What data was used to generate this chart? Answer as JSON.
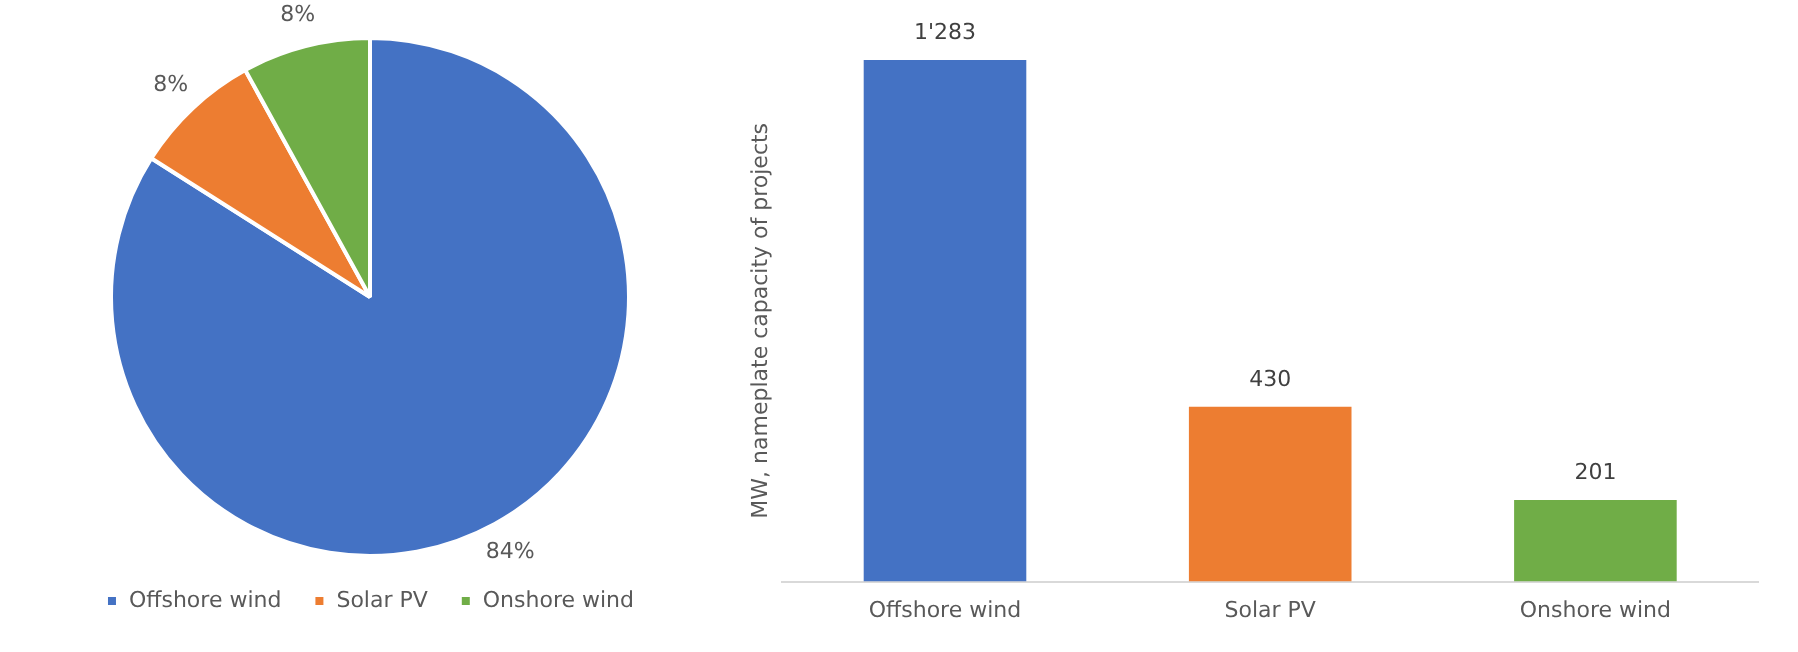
{
  "chart_data": [
    {
      "type": "pie",
      "categories": [
        "Offshore wind",
        "Solar PV",
        "Onshore wind"
      ],
      "values": [
        84,
        8,
        8
      ],
      "colors": [
        "#4472c4",
        "#ed7d31",
        "#70ad47"
      ],
      "value_labels": [
        "84%",
        "8%",
        "8%"
      ],
      "legend": "bottom"
    },
    {
      "type": "bar",
      "categories": [
        "Offshore wind",
        "Solar PV",
        "Onshore wind"
      ],
      "values": [
        1283,
        430,
        201
      ],
      "colors": [
        "#4472c4",
        "#ed7d31",
        "#70ad47"
      ],
      "value_labels": [
        "1'283",
        "430",
        "201"
      ],
      "ylabel": "MW, nameplate capacity of projects",
      "tick_labels": "x",
      "grid": false
    }
  ]
}
